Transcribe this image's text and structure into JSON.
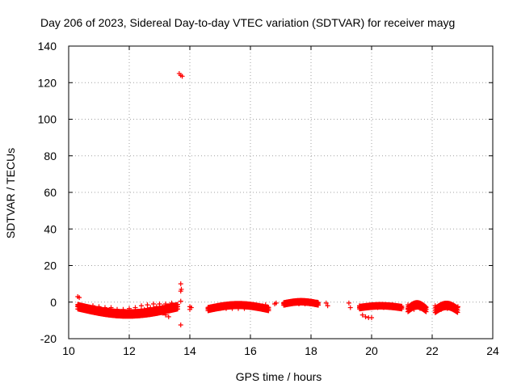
{
  "chart_data": {
    "type": "scatter",
    "title": "Day 206 of 2023, Sidereal Day-to-day VTEC variation (SDTVAR) for receiver mayg",
    "xlabel": "GPS time / hours",
    "ylabel": "SDTVAR / TECUs",
    "xlim": [
      10,
      24
    ],
    "ylim": [
      -20,
      140
    ],
    "xticks": [
      10,
      12,
      14,
      16,
      18,
      20,
      22,
      24
    ],
    "yticks": [
      -20,
      0,
      20,
      40,
      60,
      80,
      100,
      120,
      140
    ],
    "xtick_labels": [
      "10",
      "12",
      "14",
      "16",
      "18",
      "20",
      "22",
      "24"
    ],
    "ytick_labels": [
      "-20",
      "0",
      "20",
      "40",
      "60",
      "80",
      "100",
      "120",
      "140"
    ],
    "grid": true,
    "marker": "plus",
    "color": "#ff0000",
    "series": [
      {
        "name": "SDTVAR",
        "points": [
          [
            10.3,
            3
          ],
          [
            10.35,
            2.5
          ],
          [
            10.3,
            -2
          ],
          [
            10.4,
            -2.5
          ],
          [
            10.5,
            -3
          ],
          [
            10.6,
            -3.5
          ],
          [
            10.7,
            -4
          ],
          [
            10.8,
            -4.5
          ],
          [
            10.9,
            -5
          ],
          [
            11.0,
            -5
          ],
          [
            11.1,
            -5.5
          ],
          [
            11.2,
            -5.5
          ],
          [
            11.3,
            -5
          ],
          [
            11.4,
            -5.5
          ],
          [
            11.5,
            -5.5
          ],
          [
            11.6,
            -6
          ],
          [
            11.7,
            -6
          ],
          [
            11.8,
            -6.5
          ],
          [
            11.9,
            -6.5
          ],
          [
            12.0,
            -6
          ],
          [
            12.1,
            -6
          ],
          [
            12.2,
            -5.5
          ],
          [
            12.3,
            -5
          ],
          [
            12.4,
            -4.5
          ],
          [
            12.5,
            -4
          ],
          [
            12.6,
            -3.5
          ],
          [
            12.7,
            -3
          ],
          [
            12.8,
            -3
          ],
          [
            12.9,
            -2.5
          ],
          [
            13.0,
            -2.5
          ],
          [
            13.1,
            -2.5
          ],
          [
            13.2,
            -2.5
          ],
          [
            13.3,
            -2
          ],
          [
            13.4,
            -2.5
          ],
          [
            13.5,
            -2.5
          ],
          [
            13.6,
            -2.5
          ],
          [
            10.8,
            -2
          ],
          [
            11.0,
            -2.5
          ],
          [
            11.2,
            -3
          ],
          [
            11.4,
            -3
          ],
          [
            11.6,
            -4
          ],
          [
            11.8,
            -4
          ],
          [
            12.0,
            -3.5
          ],
          [
            12.2,
            -3
          ],
          [
            12.4,
            -2
          ],
          [
            12.6,
            -1.5
          ],
          [
            12.8,
            -1
          ],
          [
            13.0,
            -1
          ],
          [
            13.2,
            -1
          ],
          [
            13.4,
            -0.5
          ],
          [
            11.6,
            -7.5
          ],
          [
            11.9,
            -7.5
          ],
          [
            12.1,
            -7
          ],
          [
            13.0,
            -5
          ],
          [
            13.1,
            -6
          ],
          [
            13.2,
            -7
          ],
          [
            13.3,
            -8
          ],
          [
            13.65,
            125
          ],
          [
            13.7,
            124
          ],
          [
            13.75,
            123.5
          ],
          [
            13.7,
            10
          ],
          [
            13.72,
            7
          ],
          [
            13.7,
            6
          ],
          [
            13.7,
            0.5
          ],
          [
            13.7,
            -12.5
          ],
          [
            14.0,
            -2.5
          ],
          [
            14.05,
            -3
          ],
          [
            14.0,
            -4
          ],
          [
            14.6,
            -3.5
          ],
          [
            14.8,
            -3.5
          ],
          [
            15.0,
            -3.5
          ],
          [
            15.2,
            -3.5
          ],
          [
            15.4,
            -3.5
          ],
          [
            15.6,
            -3.5
          ],
          [
            15.8,
            -3.5
          ],
          [
            16.0,
            -3
          ],
          [
            16.2,
            -2.5
          ],
          [
            16.4,
            -2
          ],
          [
            16.5,
            -1.5
          ],
          [
            15.4,
            -2
          ],
          [
            15.6,
            -2
          ],
          [
            15.8,
            -2.5
          ],
          [
            16.8,
            -1
          ],
          [
            16.85,
            -0.5
          ],
          [
            17.1,
            -0.5
          ],
          [
            17.3,
            -0.5
          ],
          [
            17.5,
            0
          ],
          [
            17.7,
            0
          ],
          [
            17.9,
            0
          ],
          [
            18.1,
            0
          ],
          [
            18.2,
            0
          ],
          [
            17.6,
            -1
          ],
          [
            17.8,
            -1
          ],
          [
            18.0,
            -0.5
          ],
          [
            18.5,
            -0.5
          ],
          [
            18.55,
            -2
          ],
          [
            19.25,
            -0.5
          ],
          [
            19.3,
            -3
          ],
          [
            19.6,
            -2
          ],
          [
            19.8,
            -2.5
          ],
          [
            20.0,
            -3
          ],
          [
            20.2,
            -3
          ],
          [
            20.4,
            -3
          ],
          [
            20.6,
            -3
          ],
          [
            20.8,
            -2.5
          ],
          [
            20.95,
            -2.5
          ],
          [
            20.4,
            -2
          ],
          [
            20.7,
            -1.5
          ],
          [
            19.7,
            -7
          ],
          [
            19.8,
            -8
          ],
          [
            19.9,
            -8.5
          ],
          [
            20.0,
            -8.5
          ],
          [
            21.2,
            -1.5
          ],
          [
            21.3,
            -2
          ],
          [
            21.5,
            -2.5
          ],
          [
            21.7,
            -2.5
          ],
          [
            21.8,
            -3
          ],
          [
            21.2,
            -3.5
          ],
          [
            21.4,
            -4
          ],
          [
            21.6,
            -3.5
          ],
          [
            21.8,
            -4
          ],
          [
            22.1,
            -2
          ],
          [
            22.2,
            -3
          ],
          [
            22.3,
            -2
          ],
          [
            22.5,
            -2.5
          ],
          [
            22.7,
            -2
          ],
          [
            22.85,
            -2.5
          ],
          [
            22.1,
            -4.5
          ],
          [
            22.3,
            -4
          ],
          [
            22.5,
            -3.5
          ],
          [
            22.7,
            -3.5
          ]
        ]
      }
    ]
  }
}
